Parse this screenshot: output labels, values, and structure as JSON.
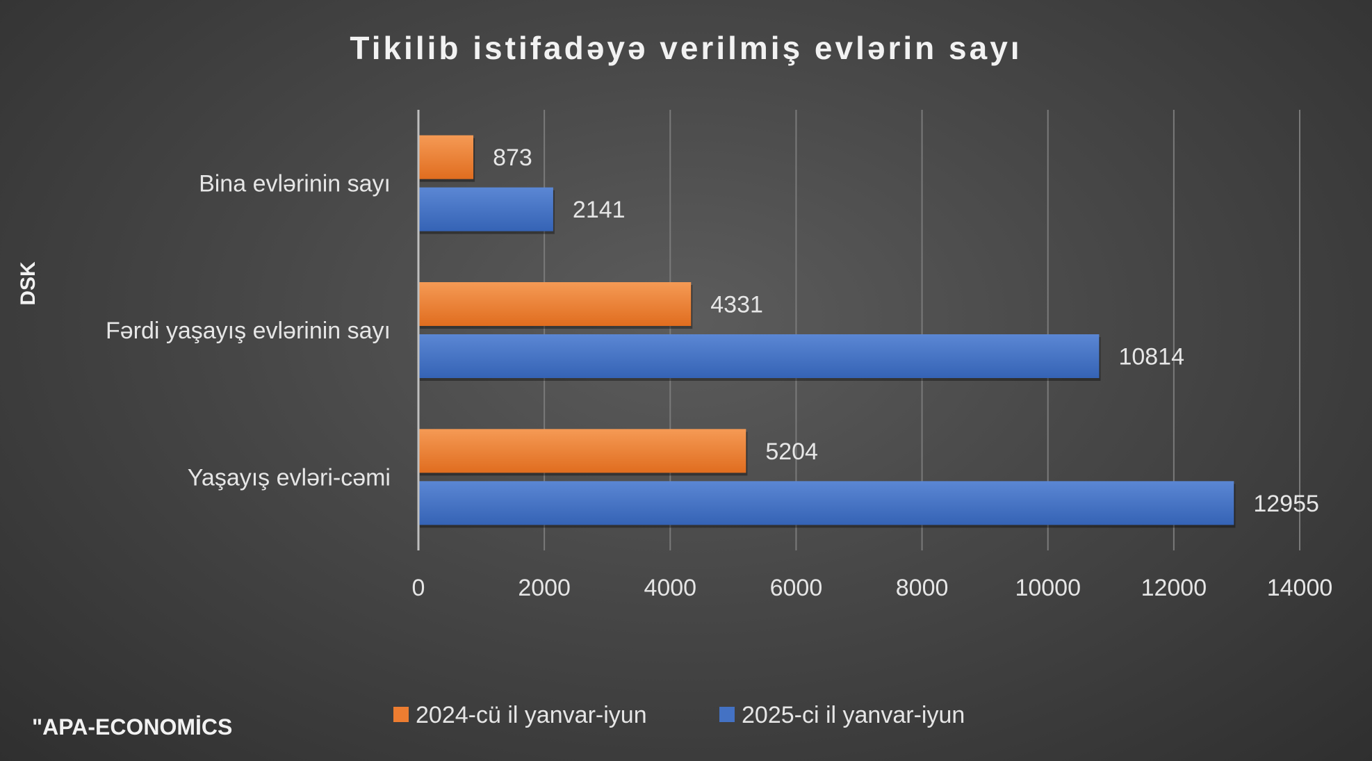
{
  "chart_data": {
    "type": "bar",
    "orientation": "horizontal",
    "title": "Tikilib istifadəyə verilmiş evlərin sayı",
    "ylabel": "DSK",
    "xlabel": "",
    "categories": [
      "Bina evlərinin sayı",
      "Fərdi yaşayış evlərinin sayı",
      "Yaşayış evləri-cəmi"
    ],
    "series": [
      {
        "name": "2024-cü il yanvar-iyun",
        "color": "#ed7d31",
        "values": [
          873,
          4331,
          5204
        ]
      },
      {
        "name": "2025-ci il yanvar-iyun",
        "color": "#4472c4",
        "values": [
          2141,
          10814,
          12955
        ]
      }
    ],
    "xlim": [
      0,
      14000
    ],
    "x_ticks": [
      0,
      2000,
      4000,
      6000,
      8000,
      10000,
      12000,
      14000
    ],
    "grid": true,
    "legend_position": "bottom",
    "data_labels": true
  },
  "source_note": "\"APA-ECONOMİCS"
}
